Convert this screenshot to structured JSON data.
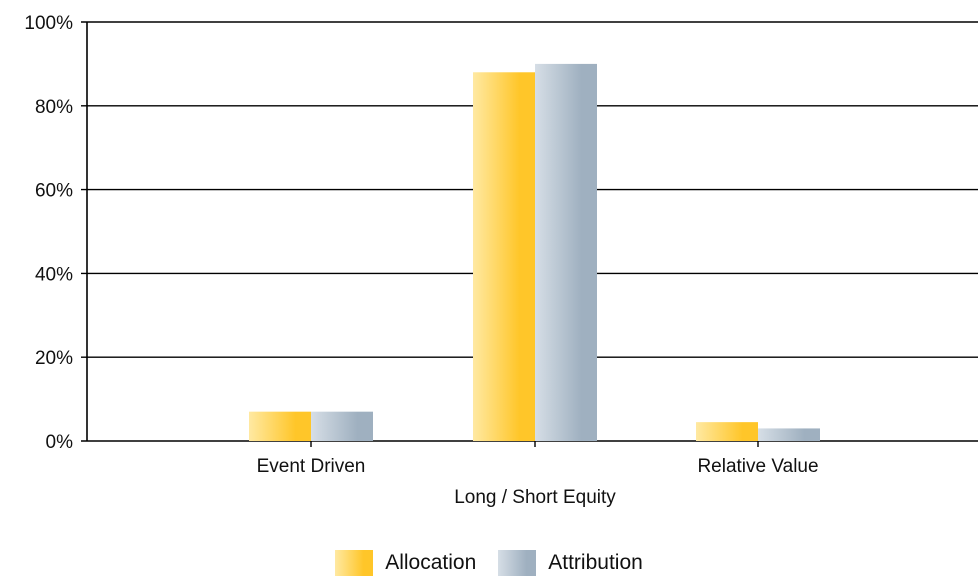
{
  "colors": {
    "allocation": "#ffc629",
    "allocation_light": "#ffe9a2",
    "attribution": "#9fb0c0",
    "attribution_light": "#d6dee6",
    "grid": "#000000"
  },
  "chart_data": {
    "type": "bar",
    "categories": [
      "Event Driven",
      "Long / Short Equity",
      "Relative Value"
    ],
    "series": [
      {
        "name": "Allocation",
        "values": [
          7,
          88,
          4.5
        ]
      },
      {
        "name": "Attribution",
        "values": [
          7,
          90,
          3
        ]
      }
    ],
    "ylim": [
      0,
      100
    ],
    "yticks": [
      "0%",
      "20%",
      "40%",
      "60%",
      "80%",
      "100%"
    ],
    "grid": true,
    "legend_position": "bottom-center"
  }
}
